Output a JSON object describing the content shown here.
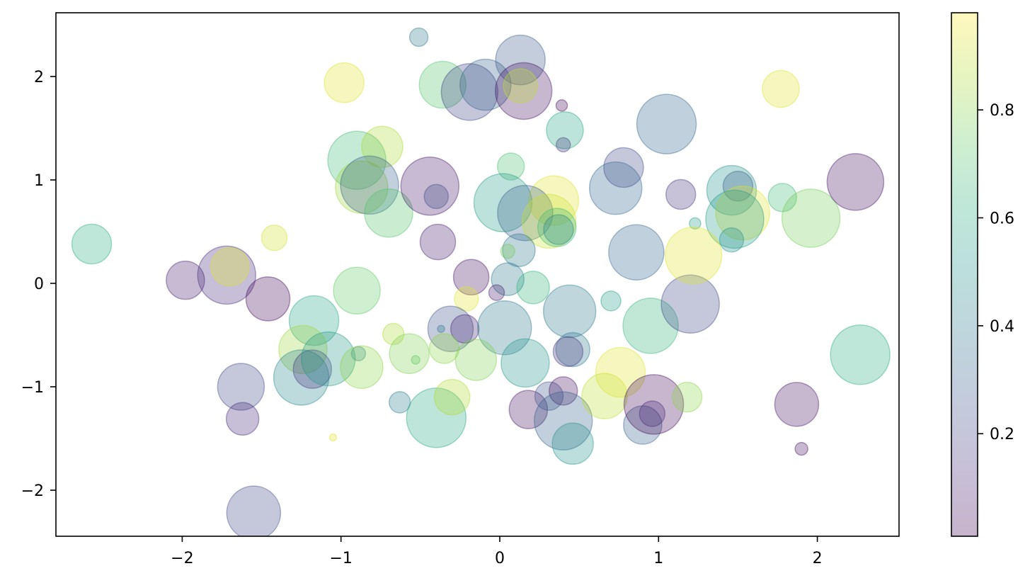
{
  "chart_data": {
    "type": "scatter",
    "title": "",
    "xlabel": "",
    "ylabel": "",
    "xlim": [
      -2.8,
      2.5
    ],
    "ylim": [
      -2.45,
      2.6
    ],
    "grid": false,
    "x_ticks": [
      -2,
      -1,
      0,
      1,
      2
    ],
    "x_tick_labels": [
      "−2",
      "−1",
      "0",
      "1",
      "2"
    ],
    "y_ticks": [
      -2,
      -1,
      0,
      1,
      2
    ],
    "y_tick_labels": [
      "−2",
      "−1",
      "0",
      "1",
      "2"
    ],
    "alpha": 0.3,
    "colormap": "viridis",
    "colorbar": {
      "position": "right",
      "range": [
        0.01,
        0.98
      ],
      "ticks": [
        0.2,
        0.4,
        0.6,
        0.8
      ],
      "tick_labels": [
        "0.2",
        "0.4",
        "0.6",
        "0.8"
      ]
    },
    "size_note": "marker radius in screen pixels",
    "points": [
      {
        "x": -2.57,
        "y": 0.38,
        "r": 28,
        "c": 0.62
      },
      {
        "x": -1.98,
        "y": 0.03,
        "r": 27,
        "c": 0.08
      },
      {
        "x": -1.72,
        "y": 0.08,
        "r": 41,
        "c": 0.12
      },
      {
        "x": -1.7,
        "y": 0.16,
        "r": 27,
        "c": 0.95
      },
      {
        "x": -1.46,
        "y": -0.15,
        "r": 31,
        "c": 0.02
      },
      {
        "x": -1.42,
        "y": 0.44,
        "r": 18,
        "c": 0.93
      },
      {
        "x": -1.17,
        "y": -0.36,
        "r": 35,
        "c": 0.58
      },
      {
        "x": -1.24,
        "y": -0.64,
        "r": 34,
        "c": 0.85
      },
      {
        "x": -1.25,
        "y": -0.91,
        "r": 39,
        "c": 0.45
      },
      {
        "x": -1.18,
        "y": -0.83,
        "r": 27,
        "c": 0.15
      },
      {
        "x": -1.08,
        "y": -0.73,
        "r": 38,
        "c": 0.53
      },
      {
        "x": -0.89,
        "y": -0.68,
        "r": 10,
        "c": 0.45
      },
      {
        "x": -0.87,
        "y": -0.81,
        "r": 30,
        "c": 0.82
      },
      {
        "x": -0.9,
        "y": -0.07,
        "r": 33,
        "c": 0.75
      },
      {
        "x": -1.63,
        "y": -1.0,
        "r": 33,
        "c": 0.22
      },
      {
        "x": -1.62,
        "y": -1.31,
        "r": 23,
        "c": 0.12
      },
      {
        "x": -1.05,
        "y": -1.49,
        "r": 5,
        "c": 0.95
      },
      {
        "x": -1.55,
        "y": -2.22,
        "r": 38,
        "c": 0.22
      },
      {
        "x": -0.98,
        "y": 1.94,
        "r": 28,
        "c": 0.95
      },
      {
        "x": -0.51,
        "y": 2.38,
        "r": 13,
        "c": 0.4
      },
      {
        "x": -0.36,
        "y": 1.92,
        "r": 33,
        "c": 0.72
      },
      {
        "x": -0.19,
        "y": 1.85,
        "r": 40,
        "c": 0.2
      },
      {
        "x": -0.09,
        "y": 1.92,
        "r": 36,
        "c": 0.3
      },
      {
        "x": 0.13,
        "y": 2.16,
        "r": 35,
        "c": 0.28
      },
      {
        "x": 0.15,
        "y": 1.86,
        "r": 40,
        "c": 0.05
      },
      {
        "x": 0.13,
        "y": 1.91,
        "r": 24,
        "c": 0.9
      },
      {
        "x": 0.39,
        "y": 1.72,
        "r": 8,
        "c": 0.02
      },
      {
        "x": 0.41,
        "y": 1.48,
        "r": 26,
        "c": 0.58
      },
      {
        "x": 0.4,
        "y": 1.34,
        "r": 10,
        "c": 0.18
      },
      {
        "x": -0.9,
        "y": 1.19,
        "r": 41,
        "c": 0.68
      },
      {
        "x": -0.74,
        "y": 1.32,
        "r": 29,
        "c": 0.87
      },
      {
        "x": -0.87,
        "y": 0.93,
        "r": 37,
        "c": 0.85
      },
      {
        "x": -0.82,
        "y": 0.95,
        "r": 41,
        "c": 0.3
      },
      {
        "x": -0.7,
        "y": 0.68,
        "r": 34,
        "c": 0.72
      },
      {
        "x": -0.44,
        "y": 0.94,
        "r": 41,
        "c": 0.07
      },
      {
        "x": -0.4,
        "y": 0.84,
        "r": 17,
        "c": 0.22
      },
      {
        "x": -0.39,
        "y": 0.4,
        "r": 25,
        "c": 0.08
      },
      {
        "x": 0.07,
        "y": 1.13,
        "r": 19,
        "c": 0.7
      },
      {
        "x": 0.02,
        "y": 0.78,
        "r": 41,
        "c": 0.55
      },
      {
        "x": 0.34,
        "y": 0.8,
        "r": 35,
        "c": 0.95
      },
      {
        "x": 0.16,
        "y": 0.68,
        "r": 39,
        "c": 0.3
      },
      {
        "x": 0.31,
        "y": 0.6,
        "r": 38,
        "c": 0.92
      },
      {
        "x": 0.36,
        "y": 0.54,
        "r": 27,
        "c": 0.68
      },
      {
        "x": 0.37,
        "y": 0.52,
        "r": 21,
        "c": 0.45
      },
      {
        "x": 0.12,
        "y": 0.32,
        "r": 23,
        "c": 0.4
      },
      {
        "x": 0.05,
        "y": 0.31,
        "r": 10,
        "c": 0.78
      },
      {
        "x": -0.18,
        "y": 0.06,
        "r": 25,
        "c": 0.05
      },
      {
        "x": 0.05,
        "y": 0.04,
        "r": 23,
        "c": 0.4
      },
      {
        "x": -0.02,
        "y": -0.09,
        "r": 11,
        "c": 0.08
      },
      {
        "x": 0.21,
        "y": -0.04,
        "r": 23,
        "c": 0.65
      },
      {
        "x": -0.21,
        "y": -0.15,
        "r": 17,
        "c": 0.95
      },
      {
        "x": -0.31,
        "y": -0.44,
        "r": 32,
        "c": 0.25
      },
      {
        "x": -0.37,
        "y": -0.44,
        "r": 5,
        "c": 0.4
      },
      {
        "x": -0.22,
        "y": -0.44,
        "r": 20,
        "c": 0.1
      },
      {
        "x": 0.03,
        "y": -0.43,
        "r": 38,
        "c": 0.4
      },
      {
        "x": -0.67,
        "y": -0.49,
        "r": 15,
        "c": 0.87
      },
      {
        "x": -0.57,
        "y": -0.68,
        "r": 28,
        "c": 0.8
      },
      {
        "x": -0.53,
        "y": -0.74,
        "r": 6,
        "c": 0.75
      },
      {
        "x": -0.35,
        "y": -0.63,
        "r": 21,
        "c": 0.82
      },
      {
        "x": -0.15,
        "y": -0.74,
        "r": 29,
        "c": 0.8
      },
      {
        "x": 0.16,
        "y": -0.77,
        "r": 34,
        "c": 0.52
      },
      {
        "x": 0.44,
        "y": -0.27,
        "r": 37,
        "c": 0.4
      },
      {
        "x": 0.7,
        "y": -0.17,
        "r": 14,
        "c": 0.55
      },
      {
        "x": 0.46,
        "y": -0.64,
        "r": 24,
        "c": 0.4
      },
      {
        "x": 0.43,
        "y": -0.66,
        "r": 21,
        "c": 0.15
      },
      {
        "x": -0.63,
        "y": -1.15,
        "r": 15,
        "c": 0.42
      },
      {
        "x": -0.4,
        "y": -1.3,
        "r": 42,
        "c": 0.6
      },
      {
        "x": -0.3,
        "y": -1.1,
        "r": 25,
        "c": 0.88
      },
      {
        "x": 0.18,
        "y": -1.22,
        "r": 27,
        "c": 0.05
      },
      {
        "x": 0.31,
        "y": -1.09,
        "r": 20,
        "c": 0.25
      },
      {
        "x": 0.4,
        "y": -1.04,
        "r": 20,
        "c": 0.05
      },
      {
        "x": 0.4,
        "y": -1.33,
        "r": 41,
        "c": 0.3
      },
      {
        "x": 0.46,
        "y": -1.55,
        "r": 29,
        "c": 0.5
      },
      {
        "x": 0.66,
        "y": -1.09,
        "r": 32,
        "c": 0.9
      },
      {
        "x": 0.76,
        "y": -0.86,
        "r": 35,
        "c": 0.95
      },
      {
        "x": 0.95,
        "y": -0.41,
        "r": 39,
        "c": 0.65
      },
      {
        "x": 1.2,
        "y": -0.2,
        "r": 41,
        "c": 0.22
      },
      {
        "x": 0.9,
        "y": -1.37,
        "r": 27,
        "c": 0.3
      },
      {
        "x": 0.97,
        "y": -1.17,
        "r": 42,
        "c": 0.03
      },
      {
        "x": 0.96,
        "y": -1.26,
        "r": 18,
        "c": 0.12
      },
      {
        "x": 1.18,
        "y": -1.1,
        "r": 21,
        "c": 0.82
      },
      {
        "x": 1.87,
        "y": -1.17,
        "r": 31,
        "c": 0.05
      },
      {
        "x": 1.9,
        "y": -1.6,
        "r": 9,
        "c": 0.05
      },
      {
        "x": 2.27,
        "y": -0.69,
        "r": 42,
        "c": 0.62
      },
      {
        "x": 1.05,
        "y": 1.54,
        "r": 42,
        "c": 0.32
      },
      {
        "x": 1.77,
        "y": 1.88,
        "r": 26,
        "c": 0.95
      },
      {
        "x": 0.78,
        "y": 1.12,
        "r": 28,
        "c": 0.22
      },
      {
        "x": 0.73,
        "y": 0.92,
        "r": 37,
        "c": 0.32
      },
      {
        "x": 1.14,
        "y": 0.86,
        "r": 21,
        "c": 0.15
      },
      {
        "x": 1.46,
        "y": 0.9,
        "r": 35,
        "c": 0.5
      },
      {
        "x": 1.5,
        "y": 0.94,
        "r": 21,
        "c": 0.3
      },
      {
        "x": 1.53,
        "y": 0.68,
        "r": 38,
        "c": 0.95
      },
      {
        "x": 1.48,
        "y": 0.62,
        "r": 41,
        "c": 0.55
      },
      {
        "x": 1.46,
        "y": 0.42,
        "r": 17,
        "c": 0.5
      },
      {
        "x": 1.78,
        "y": 0.83,
        "r": 20,
        "c": 0.68
      },
      {
        "x": 1.96,
        "y": 0.63,
        "r": 41,
        "c": 0.78
      },
      {
        "x": 2.24,
        "y": 0.98,
        "r": 40,
        "c": 0.05
      },
      {
        "x": 1.23,
        "y": 0.58,
        "r": 8,
        "c": 0.55
      },
      {
        "x": 0.86,
        "y": 0.3,
        "r": 39,
        "c": 0.32
      },
      {
        "x": 1.22,
        "y": 0.27,
        "r": 40,
        "c": 0.95
      }
    ]
  }
}
